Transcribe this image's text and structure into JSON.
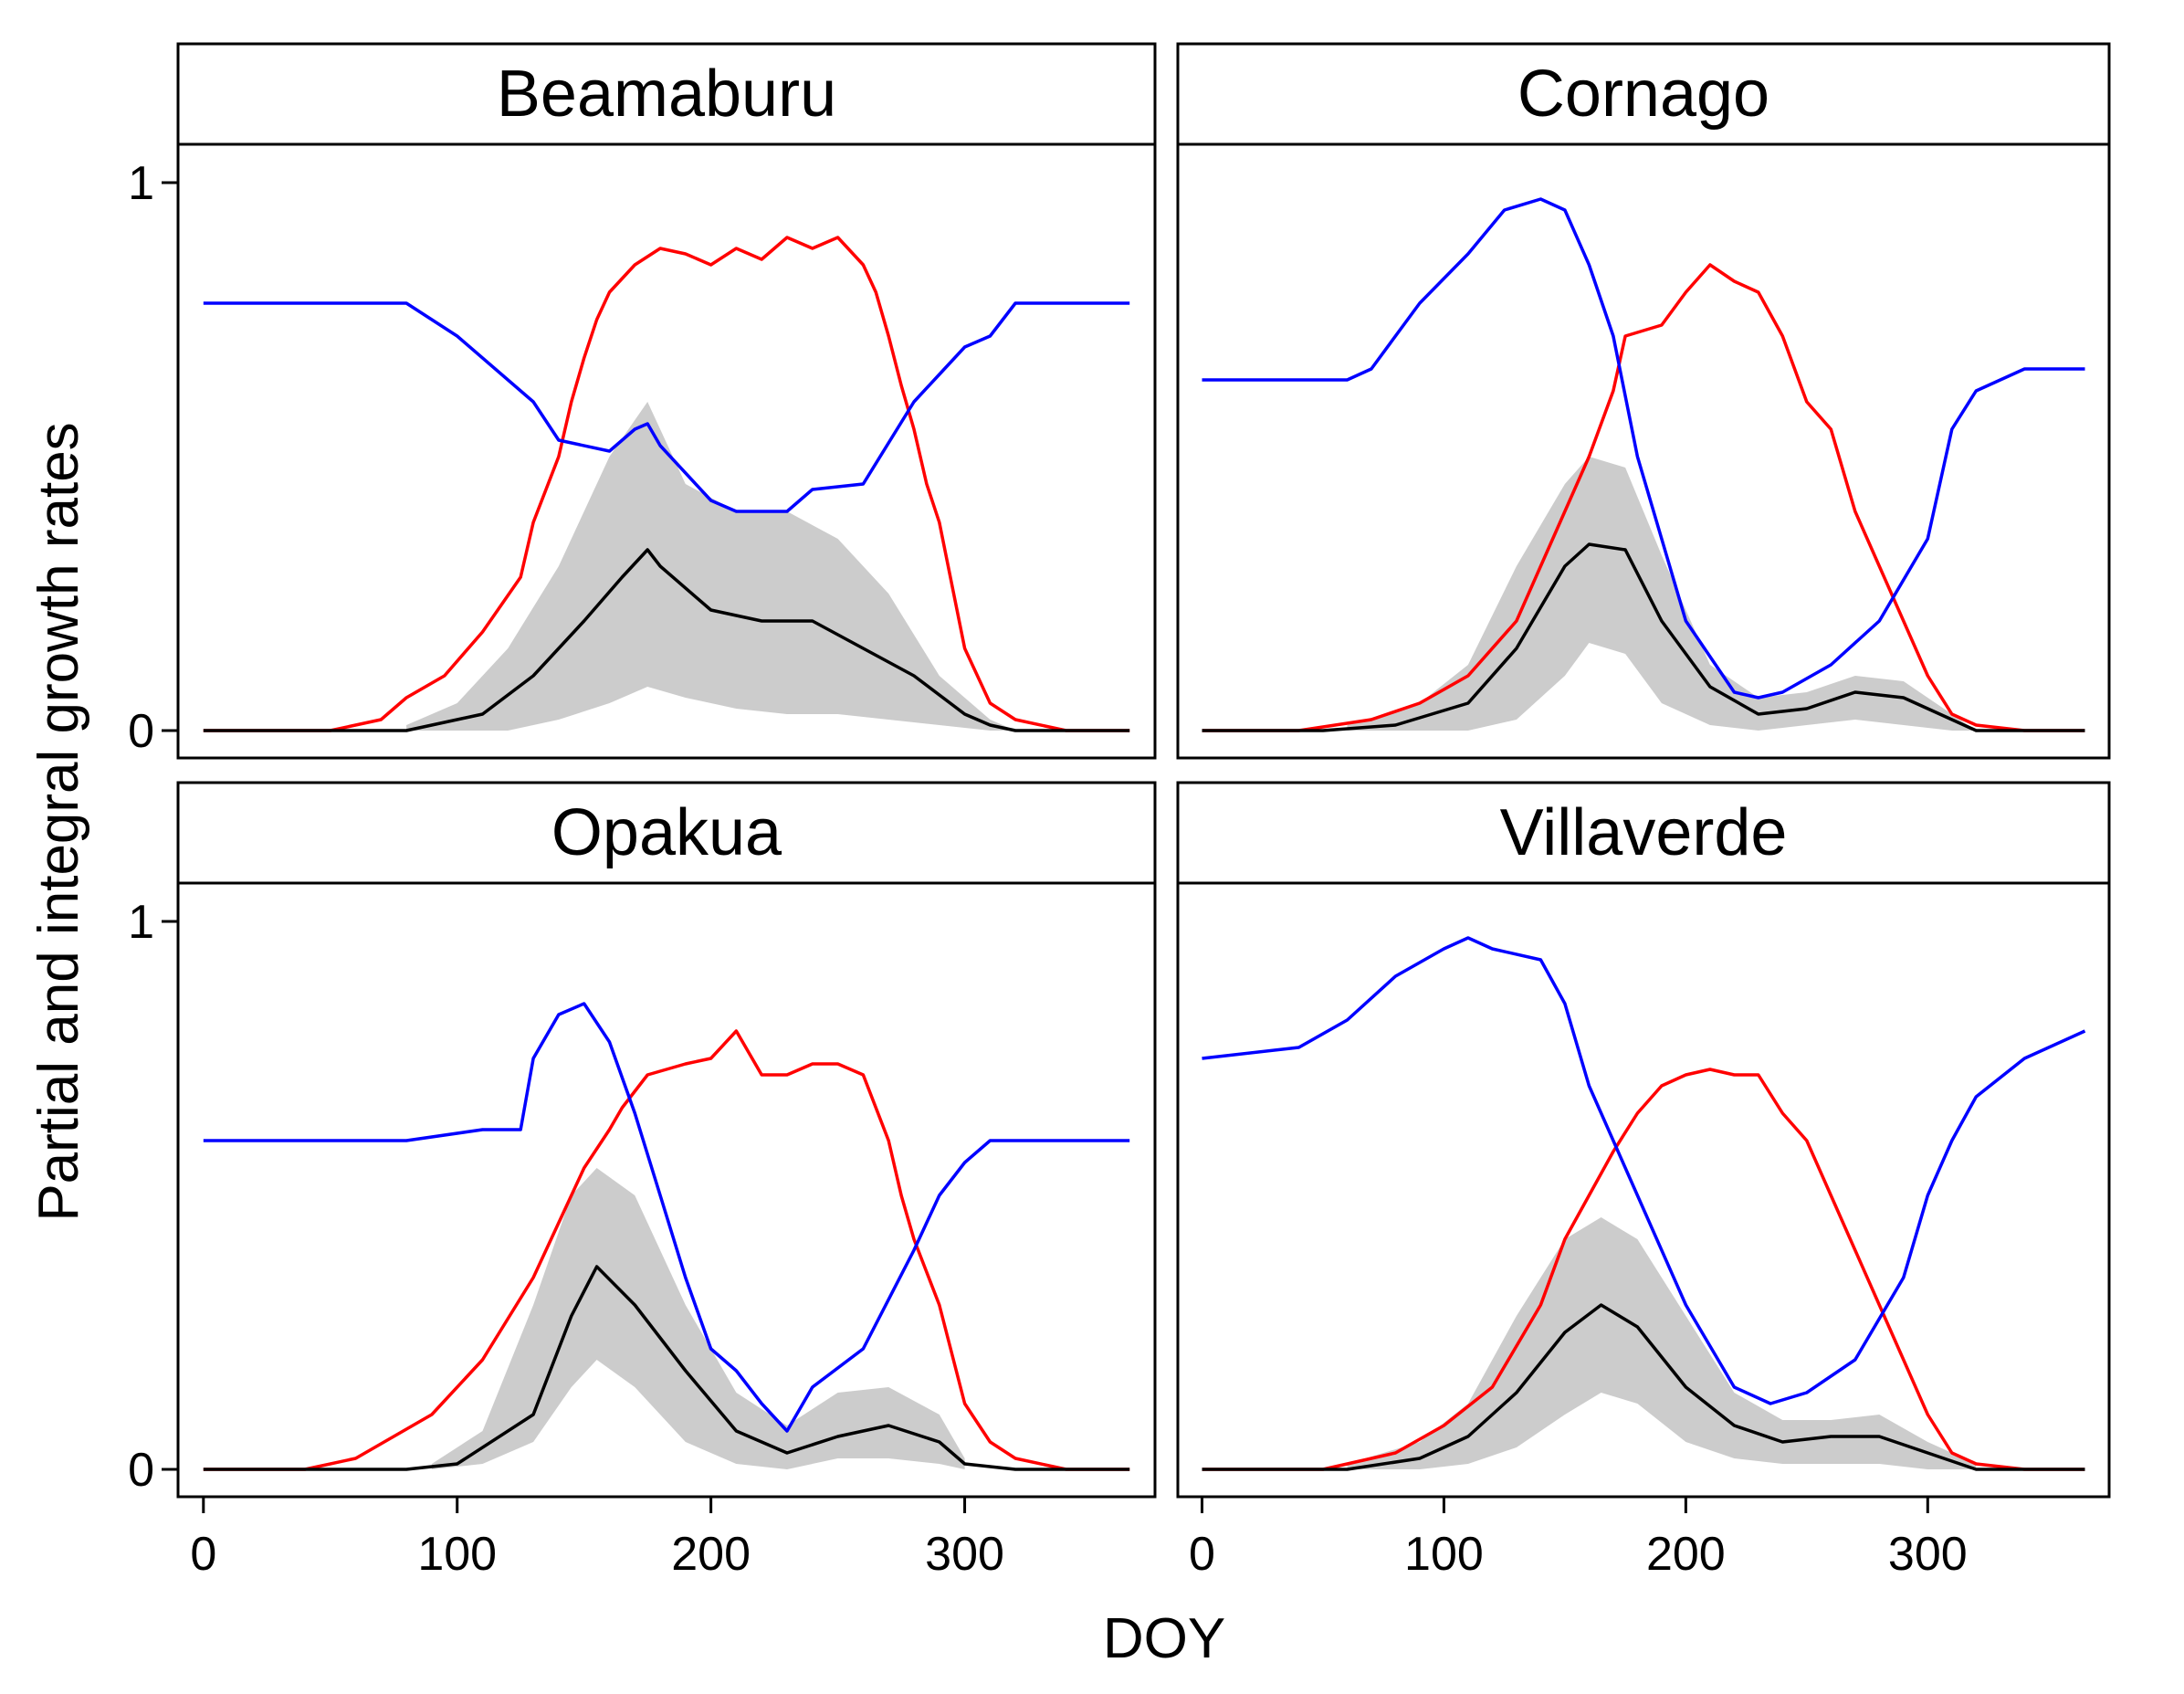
{
  "chart_data": {
    "type": "line",
    "layout": "2x2 facets",
    "xlabel": "DOY",
    "ylabel": "Partial and integral growth rates",
    "xlim": [
      -10,
      375
    ],
    "ylim": [
      -0.05,
      1.07
    ],
    "x_ticks": [
      0,
      100,
      200,
      300
    ],
    "x_tick_labels": [
      "0",
      "100",
      "200",
      "300"
    ],
    "y_ticks": [
      0,
      1
    ],
    "y_tick_labels": [
      "0",
      "1"
    ],
    "colors": {
      "temperature": "#ff0000",
      "moisture": "#0000ff",
      "integral": "#000000",
      "band": "#cccccc"
    },
    "panels": [
      {
        "title": "Beamaburu",
        "series": [
          {
            "name": "red",
            "color": "#ff0000",
            "x": [
              0,
              20,
              50,
              70,
              80,
              95,
              110,
              125,
              130,
              140,
              145,
              150,
              155,
              160,
              170,
              180,
              190,
              200,
              210,
              220,
              230,
              240,
              250,
              260,
              265,
              270,
              275,
              280,
              285,
              290,
              300,
              310,
              320,
              340,
              365
            ],
            "y": [
              0,
              0,
              0,
              0.02,
              0.06,
              0.1,
              0.18,
              0.28,
              0.38,
              0.5,
              0.6,
              0.68,
              0.75,
              0.8,
              0.85,
              0.88,
              0.87,
              0.85,
              0.88,
              0.86,
              0.9,
              0.88,
              0.9,
              0.85,
              0.8,
              0.72,
              0.63,
              0.55,
              0.45,
              0.38,
              0.15,
              0.05,
              0.02,
              0,
              0
            ]
          },
          {
            "name": "blue",
            "color": "#0000ff",
            "x": [
              0,
              80,
              100,
              130,
              140,
              160,
              170,
              175,
              180,
              200,
              210,
              230,
              240,
              260,
              280,
              290,
              300,
              310,
              320,
              365
            ],
            "y": [
              0.78,
              0.78,
              0.72,
              0.6,
              0.53,
              0.51,
              0.55,
              0.56,
              0.52,
              0.42,
              0.4,
              0.4,
              0.44,
              0.45,
              0.6,
              0.65,
              0.7,
              0.72,
              0.78,
              0.78
            ]
          },
          {
            "name": "black",
            "color": "#000000",
            "x": [
              0,
              80,
              90,
              110,
              130,
              150,
              165,
              175,
              180,
              200,
              220,
              240,
              260,
              280,
              300,
              310,
              320,
              365
            ],
            "y": [
              0,
              0,
              0.01,
              0.03,
              0.1,
              0.2,
              0.28,
              0.33,
              0.3,
              0.22,
              0.2,
              0.2,
              0.15,
              0.1,
              0.03,
              0.01,
              0,
              0
            ]
          },
          {
            "name": "band",
            "color": "#cccccc",
            "x": [
              80,
              100,
              120,
              140,
              160,
              175,
              190,
              210,
              230,
              250,
              270,
              290,
              310,
              320
            ],
            "lower": [
              0,
              0,
              0,
              0.02,
              0.05,
              0.08,
              0.06,
              0.04,
              0.03,
              0.03,
              0.02,
              0.01,
              0,
              0
            ],
            "upper": [
              0.01,
              0.05,
              0.15,
              0.3,
              0.5,
              0.6,
              0.45,
              0.4,
              0.4,
              0.35,
              0.25,
              0.1,
              0.02,
              0
            ]
          }
        ]
      },
      {
        "title": "Cornago",
        "series": [
          {
            "name": "red",
            "color": "#ff0000",
            "x": [
              0,
              40,
              70,
              90,
              110,
              130,
              140,
              150,
              160,
              170,
              175,
              190,
              200,
              210,
              220,
              230,
              240,
              250,
              260,
              270,
              280,
              290,
              300,
              310,
              320,
              340,
              365
            ],
            "y": [
              0,
              0,
              0.02,
              0.05,
              0.1,
              0.2,
              0.3,
              0.4,
              0.5,
              0.62,
              0.72,
              0.74,
              0.8,
              0.85,
              0.82,
              0.8,
              0.72,
              0.6,
              0.55,
              0.4,
              0.3,
              0.2,
              0.1,
              0.03,
              0.01,
              0,
              0
            ]
          },
          {
            "name": "blue",
            "color": "#0000ff",
            "x": [
              0,
              60,
              70,
              90,
              110,
              125,
              140,
              150,
              160,
              170,
              180,
              200,
              220,
              230,
              240,
              260,
              280,
              300,
              310,
              320,
              340,
              365
            ],
            "y": [
              0.64,
              0.64,
              0.66,
              0.78,
              0.87,
              0.95,
              0.97,
              0.95,
              0.85,
              0.72,
              0.5,
              0.2,
              0.07,
              0.06,
              0.07,
              0.12,
              0.2,
              0.35,
              0.55,
              0.62,
              0.66,
              0.66
            ]
          },
          {
            "name": "black",
            "color": "#000000",
            "x": [
              0,
              50,
              80,
              110,
              130,
              150,
              160,
              175,
              190,
              210,
              230,
              250,
              270,
              290,
              310,
              320,
              365
            ],
            "y": [
              0,
              0,
              0.01,
              0.05,
              0.15,
              0.3,
              0.34,
              0.33,
              0.2,
              0.08,
              0.03,
              0.04,
              0.07,
              0.06,
              0.02,
              0,
              0
            ]
          },
          {
            "name": "band",
            "color": "#cccccc",
            "x": [
              60,
              90,
              110,
              130,
              150,
              160,
              175,
              190,
              210,
              230,
              250,
              270,
              290,
              310,
              320
            ],
            "lower": [
              0,
              0,
              0,
              0.02,
              0.1,
              0.16,
              0.14,
              0.05,
              0.01,
              0,
              0.01,
              0.02,
              0.01,
              0,
              0
            ],
            "upper": [
              0.01,
              0.05,
              0.12,
              0.3,
              0.45,
              0.5,
              0.48,
              0.32,
              0.12,
              0.06,
              0.07,
              0.1,
              0.09,
              0.03,
              0
            ]
          }
        ]
      },
      {
        "title": "Opakua",
        "series": [
          {
            "name": "red",
            "color": "#ff0000",
            "x": [
              0,
              40,
              60,
              90,
              110,
              130,
              140,
              150,
              160,
              165,
              175,
              190,
              200,
              210,
              220,
              230,
              240,
              250,
              260,
              270,
              275,
              280,
              290,
              300,
              310,
              320,
              340,
              365
            ],
            "y": [
              0,
              0,
              0.02,
              0.1,
              0.2,
              0.35,
              0.45,
              0.55,
              0.62,
              0.66,
              0.72,
              0.74,
              0.75,
              0.8,
              0.72,
              0.72,
              0.74,
              0.74,
              0.72,
              0.6,
              0.5,
              0.42,
              0.3,
              0.12,
              0.05,
              0.02,
              0,
              0
            ]
          },
          {
            "name": "blue",
            "color": "#0000ff",
            "x": [
              0,
              80,
              110,
              125,
              130,
              140,
              150,
              160,
              170,
              180,
              190,
              200,
              210,
              220,
              230,
              240,
              260,
              280,
              290,
              300,
              310,
              320,
              365
            ],
            "y": [
              0.6,
              0.6,
              0.62,
              0.62,
              0.75,
              0.83,
              0.85,
              0.78,
              0.65,
              0.5,
              0.35,
              0.22,
              0.18,
              0.12,
              0.07,
              0.15,
              0.22,
              0.4,
              0.5,
              0.56,
              0.6,
              0.6,
              0.6
            ]
          },
          {
            "name": "black",
            "color": "#000000",
            "x": [
              0,
              80,
              100,
              130,
              145,
              155,
              170,
              190,
              210,
              230,
              250,
              270,
              290,
              300,
              320,
              365
            ],
            "y": [
              0,
              0,
              0.01,
              0.1,
              0.28,
              0.37,
              0.3,
              0.18,
              0.07,
              0.03,
              0.06,
              0.08,
              0.05,
              0.01,
              0,
              0
            ]
          },
          {
            "name": "band",
            "color": "#cccccc",
            "x": [
              90,
              110,
              130,
              145,
              155,
              170,
              190,
              210,
              230,
              250,
              270,
              290,
              300
            ],
            "lower": [
              0,
              0.01,
              0.05,
              0.15,
              0.2,
              0.15,
              0.05,
              0.01,
              0,
              0.02,
              0.02,
              0.01,
              0
            ],
            "upper": [
              0.01,
              0.07,
              0.3,
              0.5,
              0.55,
              0.5,
              0.3,
              0.14,
              0.08,
              0.14,
              0.15,
              0.1,
              0.02
            ]
          }
        ]
      },
      {
        "title": "Villaverde",
        "series": [
          {
            "name": "red",
            "color": "#ff0000",
            "x": [
              0,
              50,
              80,
              100,
              120,
              140,
              150,
              160,
              170,
              180,
              190,
              200,
              210,
              220,
              230,
              240,
              250,
              260,
              270,
              280,
              290,
              300,
              310,
              320,
              340,
              365
            ],
            "y": [
              0,
              0,
              0.03,
              0.08,
              0.15,
              0.3,
              0.42,
              0.5,
              0.58,
              0.65,
              0.7,
              0.72,
              0.73,
              0.72,
              0.72,
              0.65,
              0.6,
              0.5,
              0.4,
              0.3,
              0.2,
              0.1,
              0.03,
              0.01,
              0,
              0
            ]
          },
          {
            "name": "blue",
            "color": "#0000ff",
            "x": [
              0,
              40,
              60,
              80,
              100,
              110,
              120,
              140,
              150,
              160,
              180,
              200,
              220,
              235,
              250,
              270,
              290,
              300,
              310,
              320,
              340,
              365
            ],
            "y": [
              0.75,
              0.77,
              0.82,
              0.9,
              0.95,
              0.97,
              0.95,
              0.93,
              0.85,
              0.7,
              0.5,
              0.3,
              0.15,
              0.12,
              0.14,
              0.2,
              0.35,
              0.5,
              0.6,
              0.68,
              0.75,
              0.8
            ]
          },
          {
            "name": "black",
            "color": "#000000",
            "x": [
              0,
              60,
              90,
              110,
              130,
              150,
              165,
              180,
              200,
              220,
              240,
              260,
              280,
              300,
              320,
              365
            ],
            "y": [
              0,
              0,
              0.02,
              0.06,
              0.14,
              0.25,
              0.3,
              0.26,
              0.15,
              0.08,
              0.05,
              0.06,
              0.06,
              0.03,
              0,
              0
            ]
          },
          {
            "name": "band",
            "color": "#cccccc",
            "x": [
              60,
              90,
              110,
              130,
              150,
              165,
              180,
              200,
              220,
              240,
              260,
              280,
              300,
              320
            ],
            "lower": [
              0,
              0,
              0.01,
              0.04,
              0.1,
              0.14,
              0.12,
              0.05,
              0.02,
              0.01,
              0.01,
              0.01,
              0,
              0
            ],
            "upper": [
              0.01,
              0.05,
              0.12,
              0.28,
              0.42,
              0.46,
              0.42,
              0.28,
              0.14,
              0.09,
              0.09,
              0.1,
              0.05,
              0.01
            ]
          }
        ]
      }
    ]
  }
}
